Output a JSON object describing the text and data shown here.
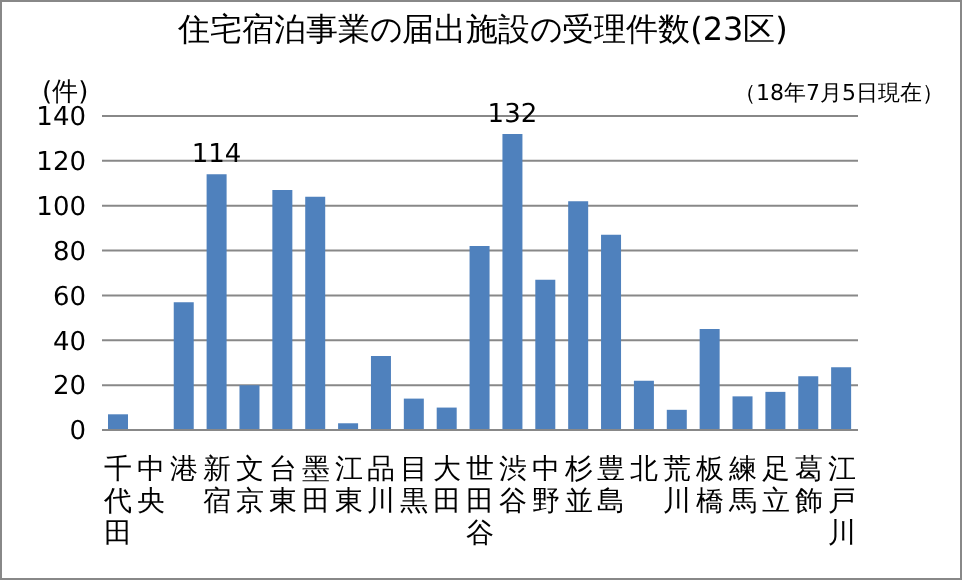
{
  "chart_data": {
    "type": "bar",
    "title": "住宅宿泊事業の届出施設の受理件数(23区)",
    "ylabel": "(件)",
    "annotations": [
      "（18年7月5日現在）"
    ],
    "categories": [
      "千代田",
      "中央",
      "港",
      "新宿",
      "文京",
      "台東",
      "墨田",
      "江東",
      "品川",
      "目黒",
      "大田",
      "世田谷",
      "渋谷",
      "中野",
      "杉並",
      "豊島",
      "北",
      "荒川",
      "板橋",
      "練馬",
      "足立",
      "葛飾",
      "江戸川"
    ],
    "values": [
      7,
      0,
      57,
      114,
      20,
      107,
      104,
      3,
      33,
      14,
      10,
      82,
      132,
      67,
      102,
      87,
      22,
      9,
      45,
      15,
      17,
      24,
      28
    ],
    "value_labels": [
      null,
      null,
      null,
      "114",
      null,
      null,
      null,
      null,
      null,
      null,
      null,
      null,
      "132",
      null,
      null,
      null,
      null,
      null,
      null,
      null,
      null,
      null,
      null
    ],
    "color": "#4f81bd",
    "ylim": [
      0,
      140
    ],
    "yticks": [
      0,
      20,
      40,
      60,
      80,
      100,
      120,
      140
    ],
    "grid": "y",
    "legend": false
  }
}
